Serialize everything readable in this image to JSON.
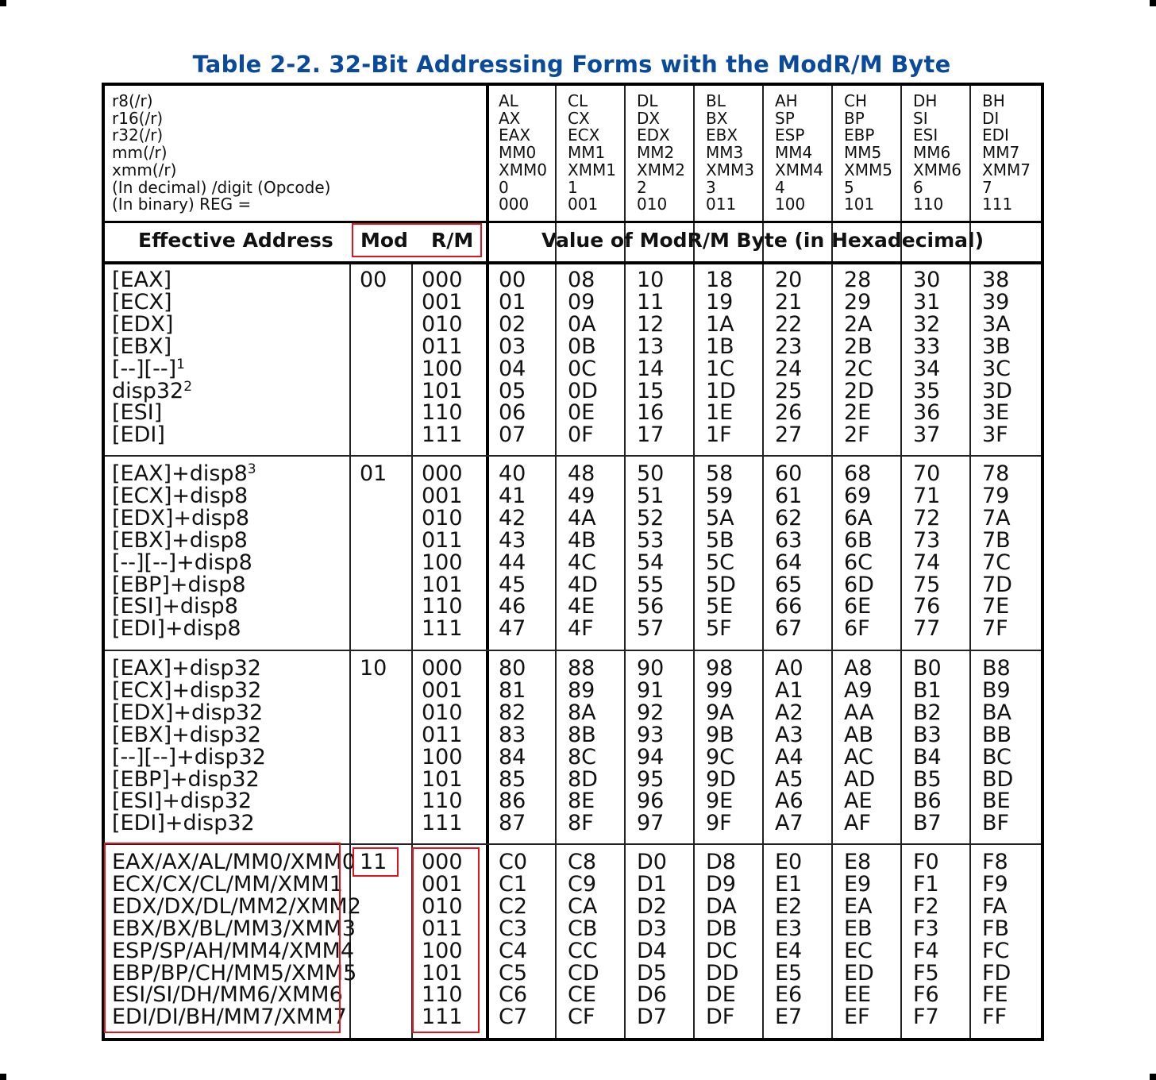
{
  "title": "Table 2-2.  32-Bit Addressing Forms with the ModR/M Byte",
  "register_header": {
    "row_labels": [
      "r8(/r)",
      "r16(/r)",
      "r32(/r)",
      "mm(/r)",
      "xmm(/r)",
      "(In decimal) /digit (Opcode)",
      "(In binary) REG ="
    ],
    "columns": [
      {
        "lines": [
          "AL",
          "AX",
          "EAX",
          "MM0",
          "XMM0",
          "0",
          "000"
        ]
      },
      {
        "lines": [
          "CL",
          "CX",
          "ECX",
          "MM1",
          "XMM1",
          "1",
          "001"
        ]
      },
      {
        "lines": [
          "DL",
          "DX",
          "EDX",
          "MM2",
          "XMM2",
          "2",
          "010"
        ]
      },
      {
        "lines": [
          "BL",
          "BX",
          "EBX",
          "MM3",
          "XMM3",
          "3",
          "011"
        ]
      },
      {
        "lines": [
          "AH",
          "SP",
          "ESP",
          "MM4",
          "XMM4",
          "4",
          "100"
        ]
      },
      {
        "lines": [
          "CH",
          "BP",
          "EBP",
          "MM5",
          "XMM5",
          "5",
          "101"
        ]
      },
      {
        "lines": [
          "DH",
          "SI",
          "ESI",
          "MM6",
          "XMM6",
          "6",
          "110"
        ]
      },
      {
        "lines": [
          "BH",
          "DI",
          "EDI",
          "MM7",
          "XMM7",
          "7",
          "111"
        ]
      }
    ]
  },
  "column_headers": {
    "effective_address": "Effective Address",
    "mod": "Mod",
    "rm": "R/M",
    "value": "Value of ModR/M Byte (in Hexadecimal)"
  },
  "rows": [
    {
      "mod": "00",
      "effective_addresses": [
        "[EAX]",
        "[ECX]",
        "[EDX]",
        "[EBX]",
        "[--][--]",
        "disp32",
        "[ESI]",
        "[EDI]"
      ],
      "footnotes": [
        "",
        "",
        "",
        "",
        "1",
        "2",
        "",
        ""
      ],
      "rm": [
        "000",
        "001",
        "010",
        "011",
        "100",
        "101",
        "110",
        "111"
      ],
      "hex": [
        [
          "00",
          "01",
          "02",
          "03",
          "04",
          "05",
          "06",
          "07"
        ],
        [
          "08",
          "09",
          "0A",
          "0B",
          "0C",
          "0D",
          "0E",
          "0F"
        ],
        [
          "10",
          "11",
          "12",
          "13",
          "14",
          "15",
          "16",
          "17"
        ],
        [
          "18",
          "19",
          "1A",
          "1B",
          "1C",
          "1D",
          "1E",
          "1F"
        ],
        [
          "20",
          "21",
          "22",
          "23",
          "24",
          "25",
          "26",
          "27"
        ],
        [
          "28",
          "29",
          "2A",
          "2B",
          "2C",
          "2D",
          "2E",
          "2F"
        ],
        [
          "30",
          "31",
          "32",
          "33",
          "34",
          "35",
          "36",
          "37"
        ],
        [
          "38",
          "39",
          "3A",
          "3B",
          "3C",
          "3D",
          "3E",
          "3F"
        ]
      ]
    },
    {
      "mod": "01",
      "effective_addresses": [
        "[EAX]+disp8",
        "[ECX]+disp8",
        "[EDX]+disp8",
        "[EBX]+disp8",
        "[--][--]+disp8",
        "[EBP]+disp8",
        "[ESI]+disp8",
        "[EDI]+disp8"
      ],
      "footnotes": [
        "3",
        "",
        "",
        "",
        "",
        "",
        "",
        ""
      ],
      "rm": [
        "000",
        "001",
        "010",
        "011",
        "100",
        "101",
        "110",
        "111"
      ],
      "hex": [
        [
          "40",
          "41",
          "42",
          "43",
          "44",
          "45",
          "46",
          "47"
        ],
        [
          "48",
          "49",
          "4A",
          "4B",
          "4C",
          "4D",
          "4E",
          "4F"
        ],
        [
          "50",
          "51",
          "52",
          "53",
          "54",
          "55",
          "56",
          "57"
        ],
        [
          "58",
          "59",
          "5A",
          "5B",
          "5C",
          "5D",
          "5E",
          "5F"
        ],
        [
          "60",
          "61",
          "62",
          "63",
          "64",
          "65",
          "66",
          "67"
        ],
        [
          "68",
          "69",
          "6A",
          "6B",
          "6C",
          "6D",
          "6E",
          "6F"
        ],
        [
          "70",
          "71",
          "72",
          "73",
          "74",
          "75",
          "76",
          "77"
        ],
        [
          "78",
          "79",
          "7A",
          "7B",
          "7C",
          "7D",
          "7E",
          "7F"
        ]
      ]
    },
    {
      "mod": "10",
      "effective_addresses": [
        "[EAX]+disp32",
        "[ECX]+disp32",
        "[EDX]+disp32",
        "[EBX]+disp32",
        "[--][--]+disp32",
        "[EBP]+disp32",
        "[ESI]+disp32",
        "[EDI]+disp32"
      ],
      "footnotes": [
        "",
        "",
        "",
        "",
        "",
        "",
        "",
        ""
      ],
      "rm": [
        "000",
        "001",
        "010",
        "011",
        "100",
        "101",
        "110",
        "111"
      ],
      "hex": [
        [
          "80",
          "81",
          "82",
          "83",
          "84",
          "85",
          "86",
          "87"
        ],
        [
          "88",
          "89",
          "8A",
          "8B",
          "8C",
          "8D",
          "8E",
          "8F"
        ],
        [
          "90",
          "91",
          "92",
          "93",
          "94",
          "95",
          "96",
          "97"
        ],
        [
          "98",
          "99",
          "9A",
          "9B",
          "9C",
          "9D",
          "9E",
          "9F"
        ],
        [
          "A0",
          "A1",
          "A2",
          "A3",
          "A4",
          "A5",
          "A6",
          "A7"
        ],
        [
          "A8",
          "A9",
          "AA",
          "AB",
          "AC",
          "AD",
          "AE",
          "AF"
        ],
        [
          "B0",
          "B1",
          "B2",
          "B3",
          "B4",
          "B5",
          "B6",
          "B7"
        ],
        [
          "B8",
          "B9",
          "BA",
          "BB",
          "BC",
          "BD",
          "BE",
          "BF"
        ]
      ]
    },
    {
      "mod": "11",
      "effective_addresses": [
        "EAX/AX/AL/MM0/XMM0",
        "ECX/CX/CL/MM/XMM1",
        "EDX/DX/DL/MM2/XMM2",
        "EBX/BX/BL/MM3/XMM3",
        "ESP/SP/AH/MM4/XMM4",
        "EBP/BP/CH/MM5/XMM5",
        "ESI/SI/DH/MM6/XMM6",
        "EDI/DI/BH/MM7/XMM7"
      ],
      "footnotes": [
        "",
        "",
        "",
        "",
        "",
        "",
        "",
        ""
      ],
      "rm": [
        "000",
        "001",
        "010",
        "011",
        "100",
        "101",
        "110",
        "111"
      ],
      "hex": [
        [
          "C0",
          "C1",
          "C2",
          "C3",
          "C4",
          "C5",
          "C6",
          "C7"
        ],
        [
          "C8",
          "C9",
          "CA",
          "CB",
          "CC",
          "CD",
          "CE",
          "CF"
        ],
        [
          "D0",
          "D1",
          "D2",
          "D3",
          "D4",
          "D5",
          "D6",
          "D7"
        ],
        [
          "D8",
          "D9",
          "DA",
          "DB",
          "DC",
          "DD",
          "DE",
          "DF"
        ],
        [
          "E0",
          "E1",
          "E2",
          "E3",
          "E4",
          "E5",
          "E6",
          "E7"
        ],
        [
          "E8",
          "E9",
          "EA",
          "EB",
          "EC",
          "ED",
          "EE",
          "EF"
        ],
        [
          "F0",
          "F1",
          "F2",
          "F3",
          "F4",
          "F5",
          "F6",
          "F7"
        ],
        [
          "F8",
          "F9",
          "FA",
          "FB",
          "FC",
          "FD",
          "FE",
          "FF"
        ]
      ]
    }
  ],
  "colors": {
    "title": "#0a4a9c",
    "highlight": "#e0141e",
    "rule": "#000000"
  }
}
